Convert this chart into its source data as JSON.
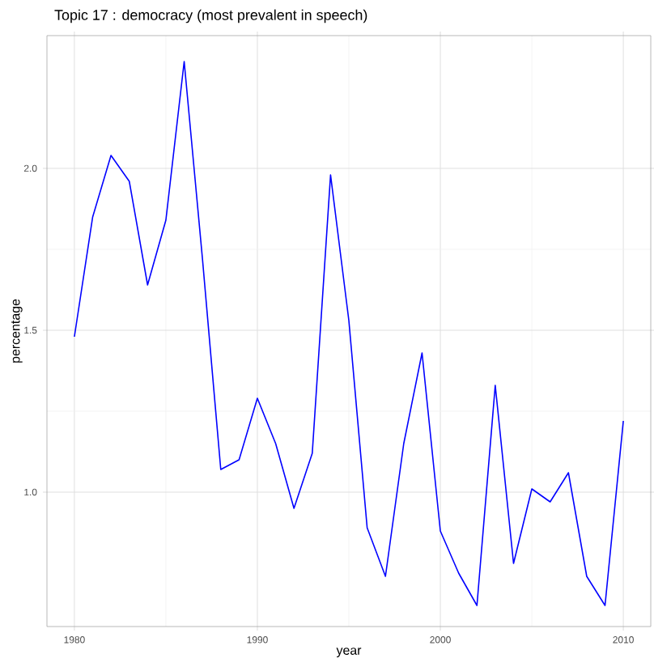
{
  "chart_data": {
    "type": "line",
    "title": "Topic 17 : democracy (most prevalent in speech)",
    "xlabel": "year",
    "ylabel": "percentage",
    "x": [
      1980,
      1981,
      1982,
      1983,
      1984,
      1985,
      1986,
      1987,
      1988,
      1989,
      1990,
      1991,
      1992,
      1993,
      1994,
      1995,
      1996,
      1997,
      1998,
      1999,
      2000,
      2001,
      2002,
      2003,
      2004,
      2005,
      2006,
      2007,
      2008,
      2009,
      2010
    ],
    "series": [
      {
        "color": "#0000ff",
        "values": [
          1.48,
          1.85,
          2.04,
          1.96,
          1.64,
          1.84,
          2.33,
          1.72,
          1.07,
          1.1,
          1.29,
          1.15,
          0.95,
          1.12,
          1.98,
          1.53,
          0.89,
          0.74,
          1.15,
          1.43,
          0.88,
          0.75,
          0.65,
          1.33,
          0.78,
          1.01,
          0.97,
          1.06,
          0.74,
          0.65,
          1.22
        ]
      }
    ],
    "xlim": [
      1978.5,
      2011.5
    ],
    "ylim": [
      0.585,
      2.41
    ],
    "xticks": [
      1980,
      1990,
      2000,
      2010
    ],
    "yticks": [
      {
        "value": 1.0,
        "label": "1.0"
      },
      {
        "value": 1.5,
        "label": "1.5"
      },
      {
        "value": 2.0,
        "label": "2.0"
      }
    ],
    "grid": true,
    "marker": "none",
    "line_style": "solid"
  }
}
